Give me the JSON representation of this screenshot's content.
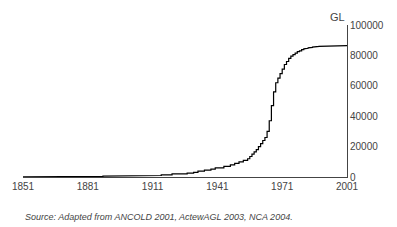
{
  "chart_data": {
    "type": "line",
    "ylabel": "GL",
    "source": "Source: Adapted from ANCOLD 2001, ActewAGL 2003, NCA 2004.",
    "color": "#000000",
    "grid": false,
    "xlim": [
      1851,
      2001
    ],
    "ylim": [
      0,
      100000
    ],
    "xticks": [
      1851,
      1881,
      1911,
      1941,
      1971,
      2001
    ],
    "yticks": [
      0,
      20000,
      40000,
      60000,
      80000,
      100000
    ],
    "x": [
      1851,
      1857,
      1857,
      1861,
      1861,
      1872,
      1872,
      1888,
      1888,
      1902,
      1902,
      1910,
      1910,
      1915,
      1915,
      1920,
      1920,
      1927,
      1927,
      1930,
      1930,
      1932,
      1932,
      1935,
      1935,
      1938,
      1938,
      1940,
      1940,
      1944,
      1944,
      1947,
      1947,
      1949,
      1949,
      1951,
      1951,
      1953,
      1953,
      1955,
      1955,
      1956,
      1956,
      1957,
      1957,
      1958,
      1958,
      1959,
      1959,
      1960,
      1960,
      1961,
      1961,
      1962,
      1962,
      1963,
      1963,
      1964,
      1964,
      1965,
      1965,
      1966,
      1966,
      1967,
      1967,
      1968,
      1968,
      1969,
      1969,
      1970,
      1970,
      1971,
      1971,
      1972,
      1972,
      1973,
      1973,
      1974,
      1974,
      1975,
      1975,
      1976,
      1976,
      1977,
      1977,
      1978,
      1978,
      1979,
      1979,
      1980,
      1980,
      1981,
      1981,
      1982,
      1982,
      1983,
      1983,
      1984,
      1984,
      1985,
      1985,
      1986,
      1986,
      1987,
      1987,
      1988,
      1988,
      1989,
      1989,
      1990,
      1990,
      1991,
      1991,
      1992,
      1992,
      1993,
      1993,
      1994,
      1994,
      1995,
      1995,
      1996,
      1996,
      1997,
      1997,
      1998,
      1998,
      1999,
      1999,
      2000,
      2000,
      2001
    ],
    "values": [
      100,
      100,
      200,
      200,
      300,
      300,
      400,
      400,
      600,
      600,
      800,
      800,
      1000,
      1000,
      1400,
      1400,
      2000,
      2000,
      2500,
      2500,
      3000,
      3000,
      3800,
      3800,
      4500,
      4500,
      5200,
      5200,
      6000,
      6000,
      7000,
      7000,
      8000,
      8000,
      9000,
      9000,
      10000,
      10000,
      11000,
      11000,
      12000,
      12000,
      13500,
      13500,
      15000,
      15000,
      16500,
      16500,
      18000,
      18000,
      20000,
      20000,
      22000,
      22000,
      24000,
      24000,
      26000,
      26000,
      30000,
      30000,
      37000,
      37000,
      47000,
      47000,
      56000,
      56000,
      62000,
      62000,
      65000,
      65000,
      68000,
      68000,
      71000,
      71000,
      74000,
      74000,
      76000,
      76000,
      78000,
      78000,
      79500,
      79500,
      80500,
      80500,
      81500,
      81500,
      82500,
      82500,
      83000,
      83000,
      83800,
      83800,
      84300,
      84300,
      84700,
      84700,
      85000,
      85000,
      85300,
      85300,
      85500,
      85500,
      85700,
      85700,
      85900,
      85900,
      86000,
      86000,
      86100,
      86100,
      86200,
      86200,
      86250,
      86250,
      86300,
      86300,
      86320,
      86320,
      86330,
      86330,
      86340,
      86340,
      86350,
      86350,
      86360,
      86360,
      86370,
      86370,
      86375,
      86375,
      86380,
      86380
    ]
  }
}
